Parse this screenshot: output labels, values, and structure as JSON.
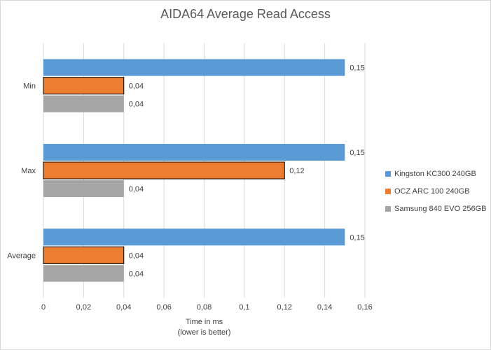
{
  "chart_data": {
    "type": "bar",
    "orientation": "horizontal",
    "title": "AIDA64 Average Read Access",
    "xlabel": [
      "Time in ms",
      "(lower is better)"
    ],
    "ylabel": "",
    "categories": [
      "Min",
      "Max",
      "Average"
    ],
    "series": [
      {
        "name": "Kingston KC300 240GB",
        "color": "#5b9bd5",
        "values": [
          0.15,
          0.15,
          0.15
        ],
        "labels": [
          "0,15",
          "0,15",
          "0,15"
        ]
      },
      {
        "name": "OCZ ARC 100 240GB",
        "color": "#ed7d31",
        "values": [
          0.04,
          0.12,
          0.04
        ],
        "labels": [
          "0,04",
          "0,12",
          "0,04"
        ]
      },
      {
        "name": "Samsung 840 EVO 256GB",
        "color": "#a5a5a5",
        "values": [
          0.04,
          0.04,
          0.04
        ],
        "labels": [
          "0,04",
          "0,04",
          "0,04"
        ]
      }
    ],
    "xlim": [
      0,
      0.16
    ],
    "ticks": [
      "0",
      "0,02",
      "0,04",
      "0,06",
      "0,08",
      "0,1",
      "0,12",
      "0,14",
      "0,16"
    ],
    "grid": true,
    "legend_position": "right"
  }
}
